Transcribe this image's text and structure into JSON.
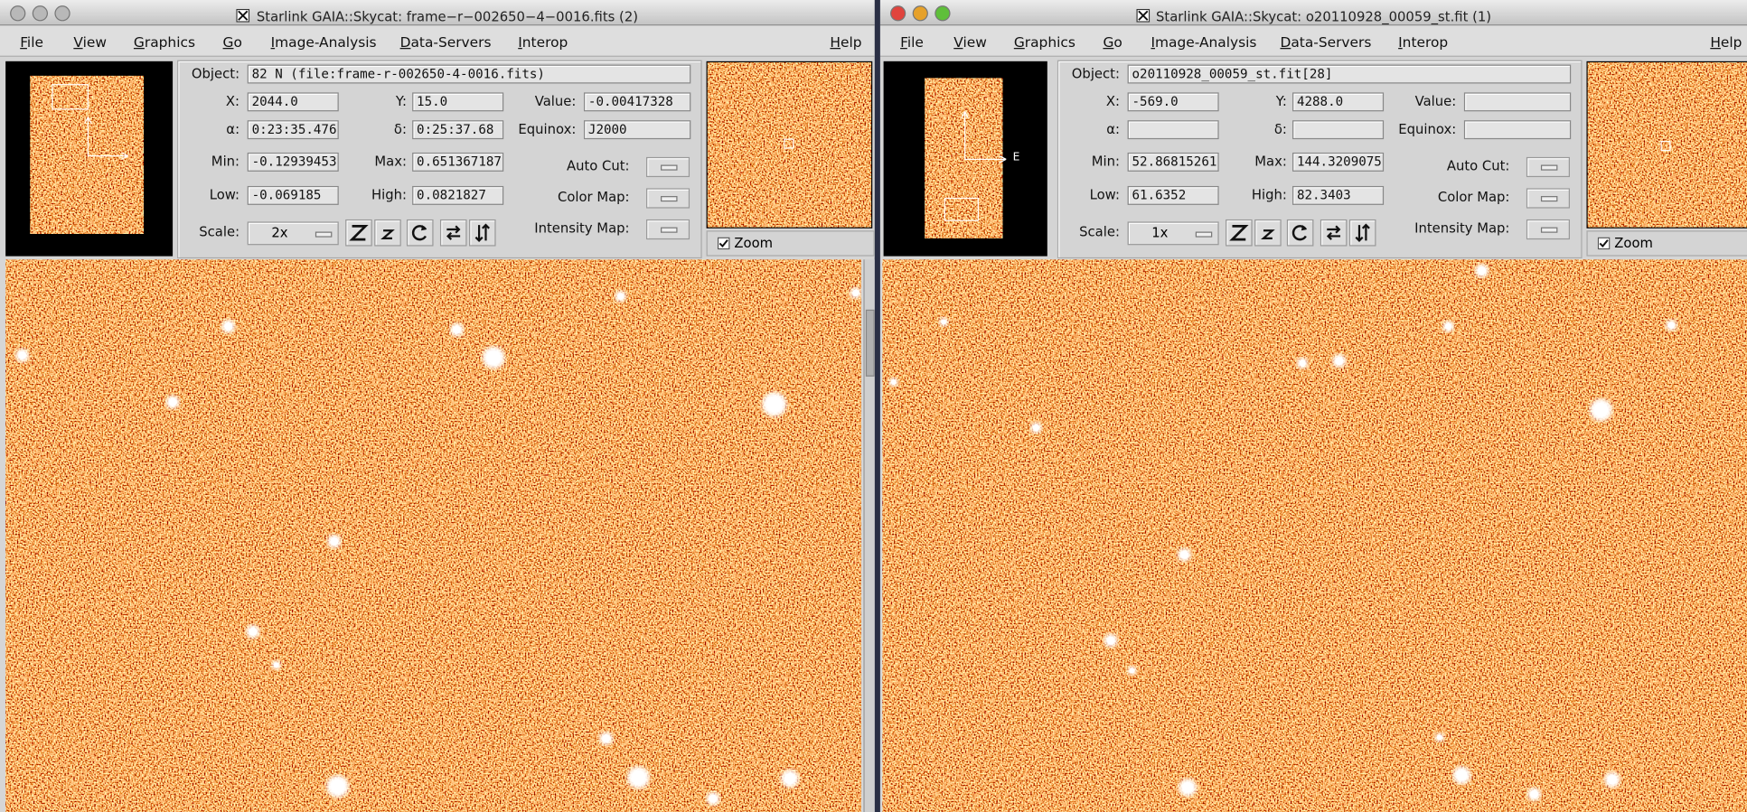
{
  "windows": [
    {
      "title": "Starlink GAIA::Skycat: frame−r−002650−4−0016.fits (2)",
      "menu": [
        "File",
        "View",
        "Graphics",
        "Go",
        "Image-Analysis",
        "Data-Servers",
        "Interop"
      ],
      "help": "Help",
      "object_label": "Object:",
      "object": "82 N (file:frame-r-002650-4-0016.fits)",
      "rows": [
        [
          {
            "label": "X:",
            "value": "2044.0"
          },
          {
            "label": "Y:",
            "value": "15.0"
          },
          {
            "label": "Value:",
            "value": "-0.00417328"
          }
        ],
        [
          {
            "label": "α:",
            "value": "0:23:35.476"
          },
          {
            "label": "δ:",
            "value": "0:25:37.68"
          },
          {
            "label": "Equinox:",
            "value": "J2000"
          }
        ],
        [
          {
            "label": "Min:",
            "value": "-0.12939453"
          },
          {
            "label": "Max:",
            "value": "0.651367187"
          }
        ],
        [
          {
            "label": "Low:",
            "value": "-0.069185"
          },
          {
            "label": "High:",
            "value": "0.0821827"
          }
        ]
      ],
      "options": [
        "Auto Cut:",
        "Color Map:",
        "Intensity Map:"
      ],
      "scale_label": "Scale:",
      "scale": "2x",
      "zoom": "Zoom"
    },
    {
      "title": "Starlink GAIA::Skycat: o20110928_00059_st.fit (1)",
      "menu": [
        "File",
        "View",
        "Graphics",
        "Go",
        "Image-Analysis",
        "Data-Servers",
        "Interop"
      ],
      "help": "Help",
      "object_label": "Object:",
      "object": "o20110928_00059_st.fit[28]",
      "rows": [
        [
          {
            "label": "X:",
            "value": "-569.0"
          },
          {
            "label": "Y:",
            "value": "4288.0"
          },
          {
            "label": "Value:",
            "value": null
          }
        ],
        [
          {
            "label": "α:",
            "value": null
          },
          {
            "label": "δ:",
            "value": null
          },
          {
            "label": "Equinox:",
            "value": null
          }
        ],
        [
          {
            "label": "Min:",
            "value": "52.86815261"
          },
          {
            "label": "Max:",
            "value": "144.3209075"
          }
        ],
        [
          {
            "label": "Low:",
            "value": "61.6352"
          },
          {
            "label": "High:",
            "value": "82.3403"
          }
        ]
      ],
      "options": [
        "Auto Cut:",
        "Color Map:",
        "Intensity Map:"
      ],
      "scale_label": "Scale:",
      "scale": "1x",
      "zoom": "Zoom",
      "compass_label": "E"
    }
  ]
}
